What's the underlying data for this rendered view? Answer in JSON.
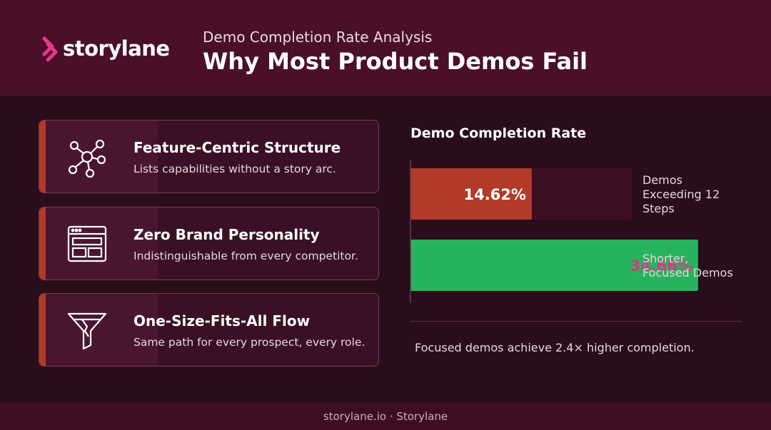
{
  "header": {
    "logo_text": "storylane",
    "subtitle": "Demo Completion Rate Analysis",
    "title": "Why Most Product Demos Fail"
  },
  "cards": [
    {
      "title": "Feature-Centric Structure",
      "desc": "Lists capabilities without a story arc.",
      "icon": "network-icon"
    },
    {
      "title": "Zero Brand Personality",
      "desc": "Indistinguishable from every competitor.",
      "icon": "browser-window-icon"
    },
    {
      "title": "One-Size-Fits-All Flow",
      "desc": "Same path for every prospect, every role.",
      "icon": "funnel-icon"
    }
  ],
  "chart_data": {
    "type": "bar",
    "orientation": "horizontal",
    "title": "Demo Completion Rate",
    "categories": [
      "Demos Exceeding 12 Steps",
      "Shorter, Focused Demos"
    ],
    "values": [
      14.62,
      34.66
    ],
    "value_labels": [
      "14.62%",
      "34.66%"
    ],
    "category_label_lines": [
      [
        "Demos",
        "Exceeding 12",
        "Steps"
      ],
      [
        "Shorter,",
        "Focused Demos"
      ]
    ],
    "xlim": [
      0,
      40
    ],
    "colors": [
      "#b23a28",
      "#27b35e"
    ],
    "track_color": "#3c0f25",
    "label_colors": [
      "#ffffff",
      "#d63b87"
    ],
    "note": "Focused demos achieve 2.4× higher completion."
  },
  "footer": {
    "text": "storylane.io · Storylane"
  },
  "colors": {
    "background": "#2a0d1b",
    "header": "#4a1029",
    "accent": "#b23a28",
    "brand_pink": "#e8398a"
  }
}
